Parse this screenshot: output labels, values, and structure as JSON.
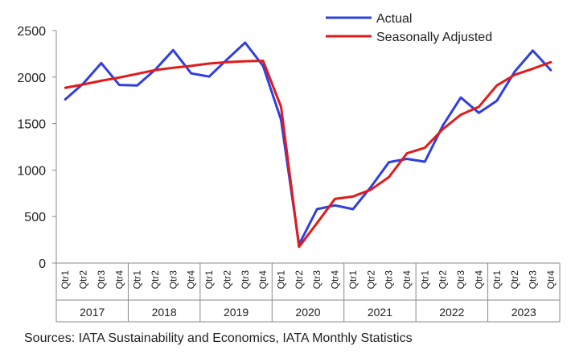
{
  "chart_data": {
    "type": "line",
    "title": "",
    "xlabel": "",
    "ylabel": "",
    "ylim": [
      0,
      2500
    ],
    "yticks": [
      0,
      500,
      1000,
      1500,
      2000,
      2500
    ],
    "years": [
      "2017",
      "2018",
      "2019",
      "2020",
      "2021",
      "2022",
      "2023"
    ],
    "quarters": [
      "Qtr1",
      "Qtr2",
      "Qtr3",
      "Qtr4"
    ],
    "legend_position": "top-right",
    "series": [
      {
        "name": "Actual",
        "color": "#2f3fe0",
        "values": [
          1760,
          1930,
          2150,
          1915,
          1910,
          2080,
          2290,
          2040,
          2005,
          2190,
          2370,
          2120,
          1540,
          200,
          580,
          620,
          580,
          820,
          1085,
          1120,
          1090,
          1480,
          1780,
          1615,
          1745,
          2060,
          2285,
          2075
        ]
      },
      {
        "name": "Seasonally Adjusted",
        "color": "#e01b1b",
        "values": [
          1885,
          1920,
          1960,
          1995,
          2035,
          2075,
          2100,
          2120,
          2145,
          2160,
          2170,
          2175,
          1680,
          175,
          430,
          690,
          715,
          790,
          925,
          1180,
          1240,
          1440,
          1595,
          1680,
          1910,
          2025,
          2090,
          2160
        ]
      }
    ]
  },
  "footer": {
    "sources": "Sources: IATA Sustainability and Economics, IATA Monthly Statistics"
  }
}
